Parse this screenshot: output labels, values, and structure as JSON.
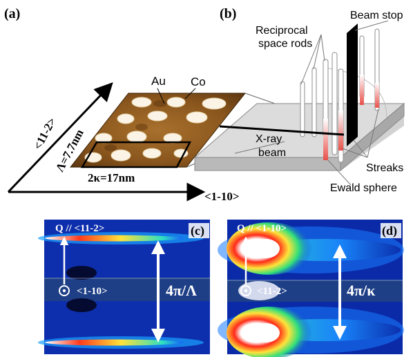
{
  "panel_a": {
    "label": "(a)",
    "au": "Au",
    "co": "Co",
    "axis_vertical": "<11-2>",
    "axis_horizontal": "<1-10>",
    "lambda_text": "Λ=7.7nm",
    "kappa_text": "2κ=17nm"
  },
  "panel_b": {
    "label": "(b)",
    "beam_stop": "Beam stop",
    "rods_line1": "Reciprocal",
    "rods_line2": "space rods",
    "xray_line1": "X-ray",
    "xray_line2": "beam",
    "streaks": "Streaks",
    "ewald": "Ewald sphere"
  },
  "panel_c": {
    "label": "(c)",
    "q_text": "Q // <11-2>",
    "dir_text": "<1-10>",
    "period_text": "4π/Λ"
  },
  "panel_d": {
    "label": "(d)",
    "q_text": "Q // <1-10>",
    "dir_text": "<11-2>",
    "period_text": "4π/κ"
  },
  "colors": {
    "afm_dark": "#6b3f12",
    "afm_mid": "#b07a36",
    "detector_bg": "#0a2aa8",
    "band": "#1e3f86"
  }
}
